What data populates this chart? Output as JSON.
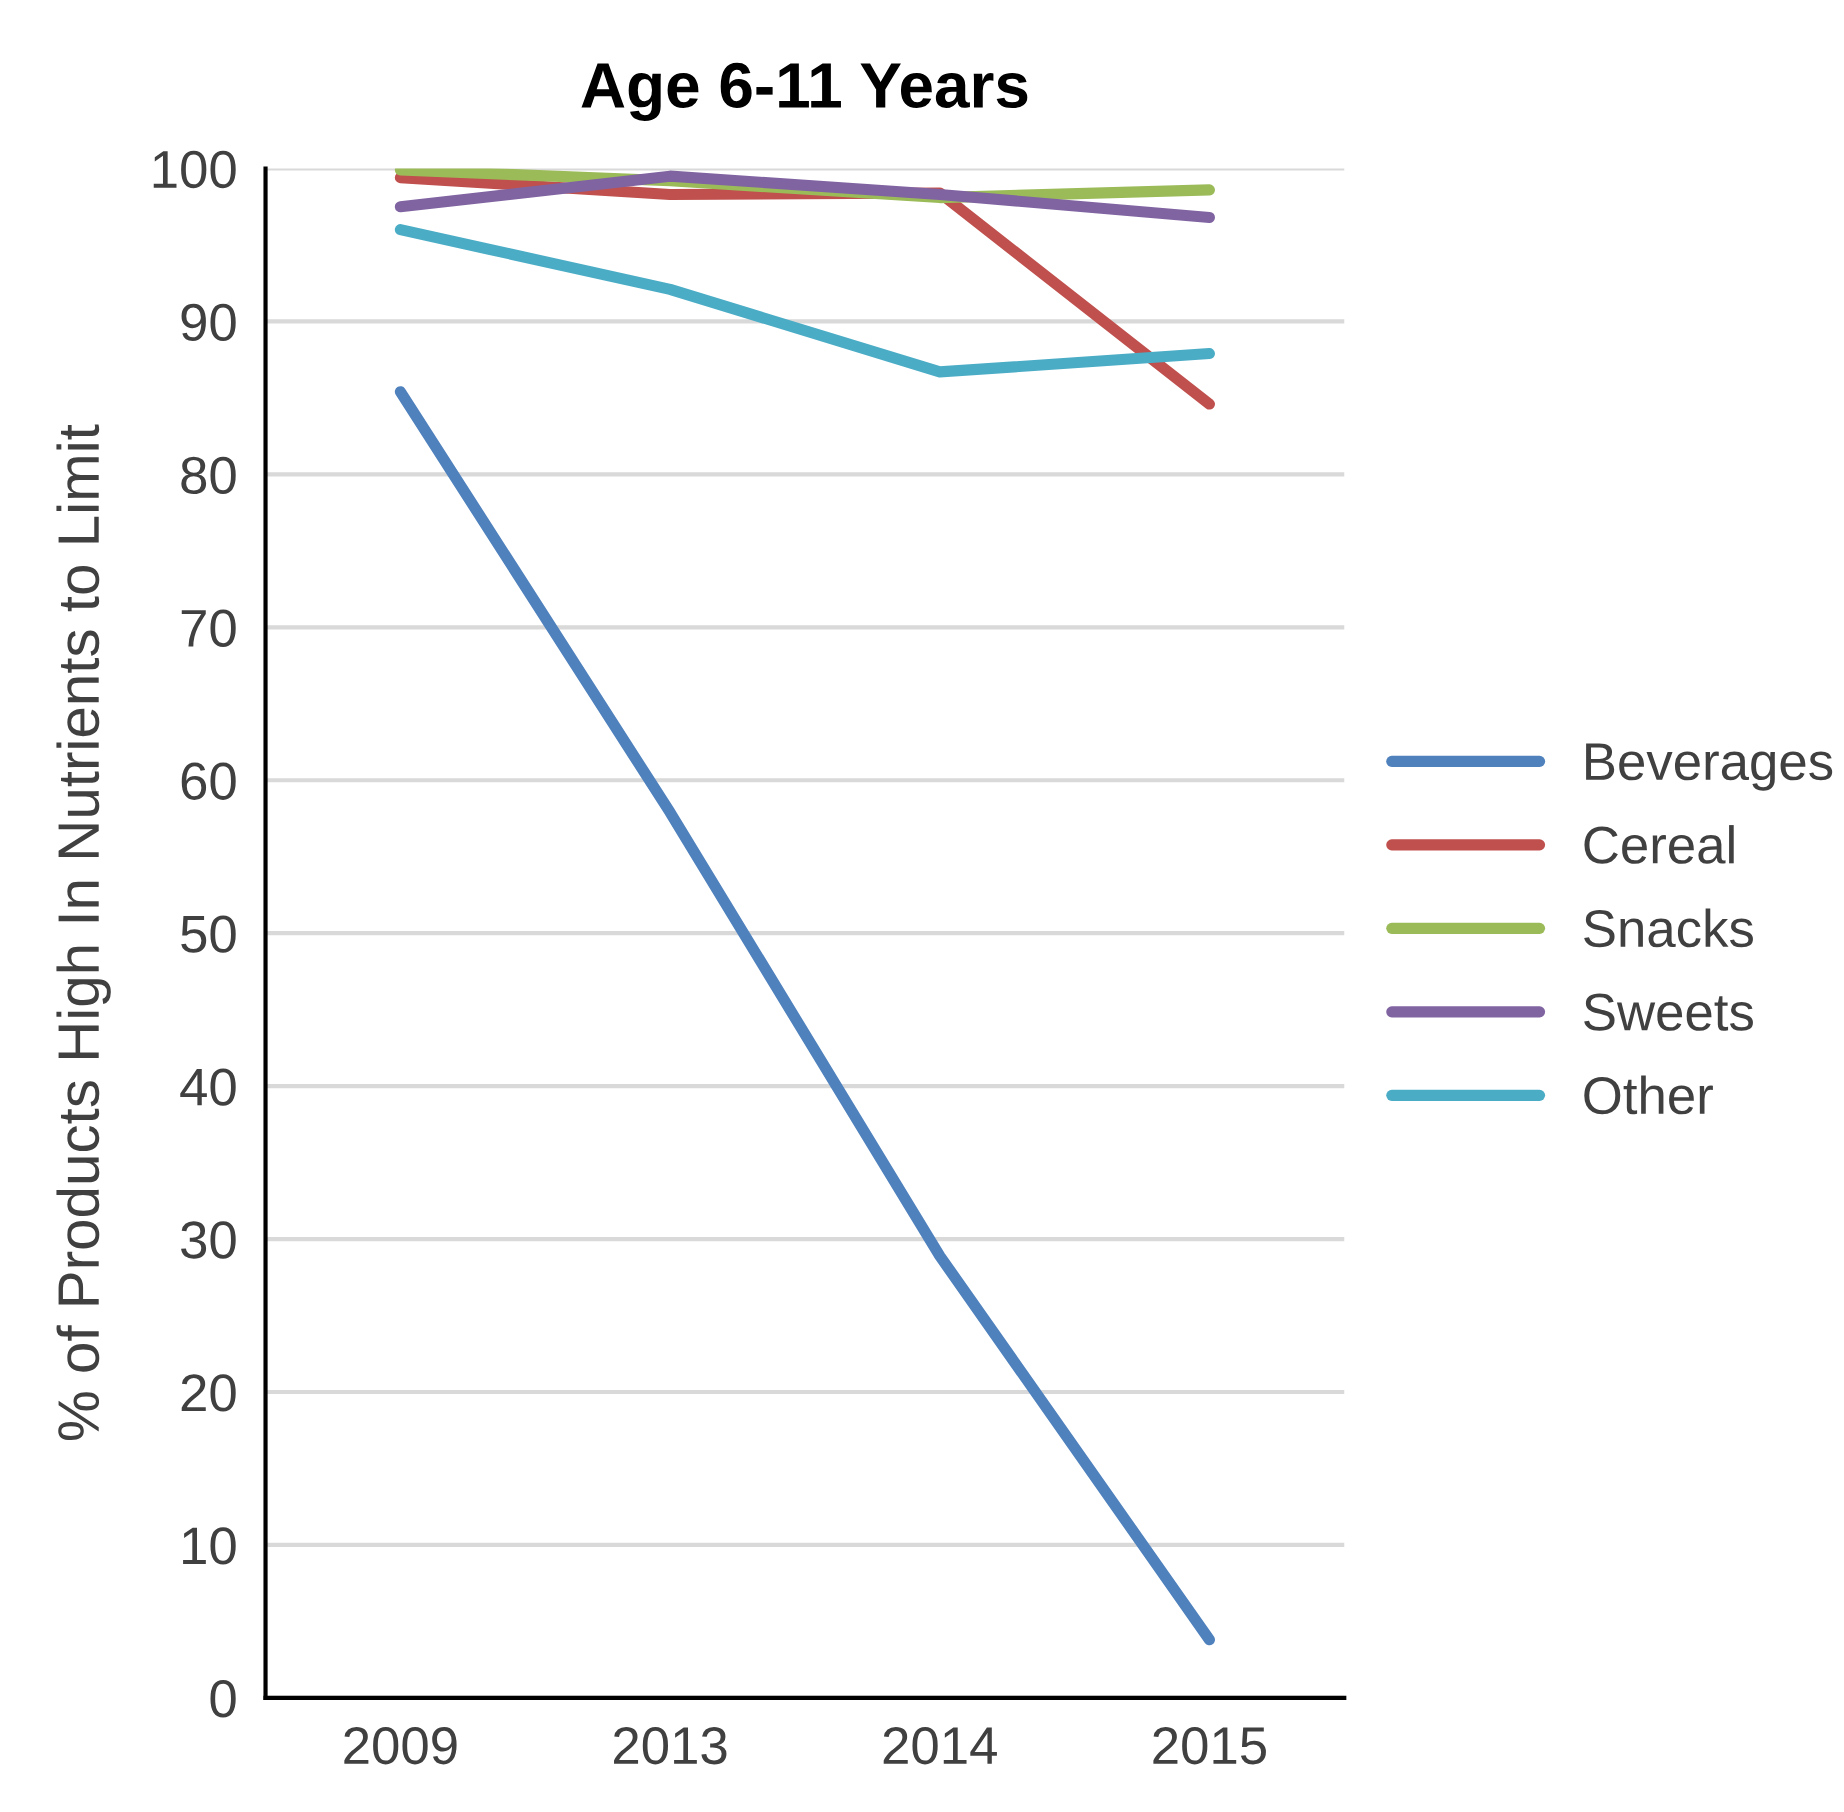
{
  "chart_data": {
    "type": "line",
    "title": "Age 6-11 Years",
    "ylabel": "% of Products High In Nutrients to Limit",
    "categories": [
      "2009",
      "2013",
      "2014",
      "2015"
    ],
    "series": [
      {
        "name": "Beverages",
        "color": "#4f81bd",
        "values": [
          85.4,
          57.9,
          28.9,
          3.8
        ]
      },
      {
        "name": "Cereal",
        "color": "#c0504d",
        "values": [
          99.4,
          98.3,
          98.4,
          84.6
        ]
      },
      {
        "name": "Snacks",
        "color": "#9bbb59",
        "values": [
          99.9,
          99.2,
          98.1,
          98.6
        ]
      },
      {
        "name": "Sweets",
        "color": "#8064a2",
        "values": [
          97.5,
          99.5,
          98.3,
          96.8
        ]
      },
      {
        "name": "Other",
        "color": "#4bacc6",
        "values": [
          96.0,
          92.1,
          86.7,
          87.9
        ]
      }
    ],
    "ylim": [
      0,
      100
    ],
    "yticks": [
      0,
      10,
      20,
      30,
      40,
      50,
      60,
      70,
      80,
      90,
      100
    ],
    "grid": "y",
    "legend": "right",
    "marker": "none",
    "line_style": "solid"
  }
}
